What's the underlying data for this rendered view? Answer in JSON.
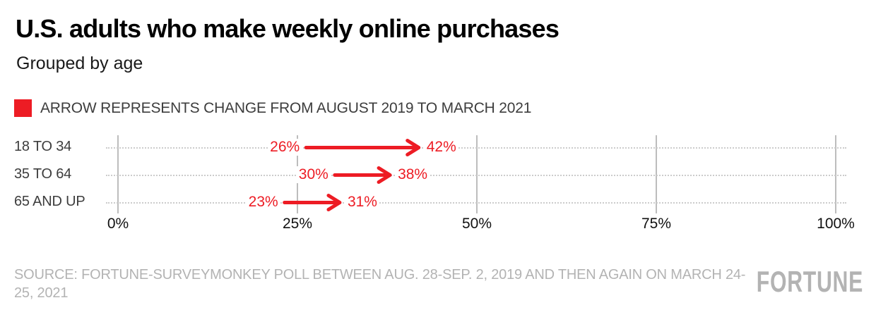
{
  "header": {
    "title": "U.S. adults who make weekly online purchases",
    "subtitle": "Grouped by age"
  },
  "legend": {
    "label": "ARROW REPRESENTS CHANGE FROM AUGUST 2019 TO MARCH 2021",
    "swatch_color": "#ed1c24"
  },
  "chart_data": {
    "type": "dumbbell-arrow",
    "orientation": "horizontal",
    "categories": [
      "18 TO 34",
      "35 TO 64",
      "65 AND UP"
    ],
    "series": [
      {
        "name": "August 2019",
        "values": [
          26,
          30,
          23
        ]
      },
      {
        "name": "March 2021",
        "values": [
          42,
          38,
          31
        ]
      }
    ],
    "value_suffix": "%",
    "xlim": [
      0,
      100
    ],
    "x_ticks": [
      0,
      25,
      50,
      75,
      100
    ],
    "x_tick_labels": [
      "0%",
      "25%",
      "50%",
      "75%",
      "100%"
    ],
    "arrow_color": "#ed1c24",
    "grid": true,
    "legend_position": "top-left"
  },
  "footer": {
    "source_line": "SOURCE: FORTUNE-SURVEYMONKEY POLL BETWEEN AUG. 28-SEP. 2, 2019 AND THEN AGAIN ON MARCH 24-25, 2021",
    "brand": "FORTUNE"
  }
}
